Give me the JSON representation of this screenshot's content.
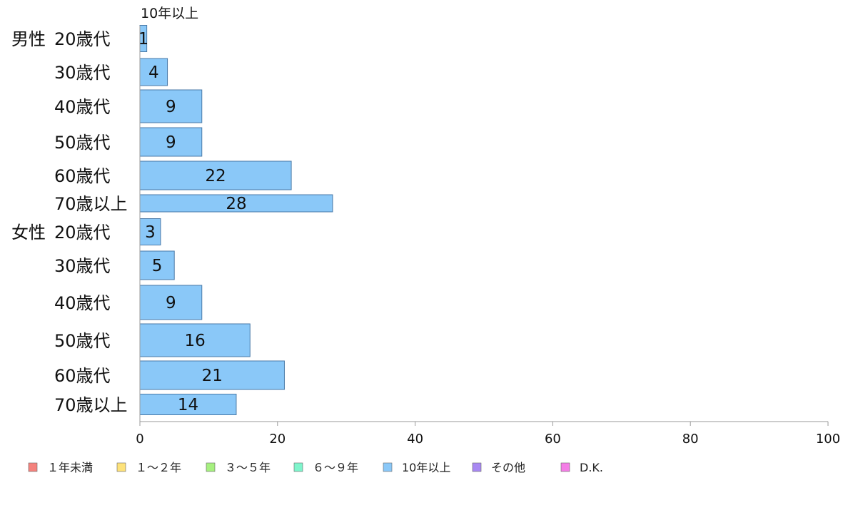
{
  "chart_data": {
    "type": "bar",
    "orientation": "horizontal",
    "series_header": "10年以上",
    "groups": [
      {
        "label": "男性",
        "rows": [
          {
            "category": "20歳代",
            "value": 1,
            "label": "1"
          },
          {
            "category": "30歳代",
            "value": 4,
            "label": "4"
          },
          {
            "category": "40歳代",
            "value": 9,
            "label": "9"
          },
          {
            "category": "50歳代",
            "value": 9,
            "label": "9"
          },
          {
            "category": "60歳代",
            "value": 22,
            "label": "22"
          },
          {
            "category": "70歳以上",
            "value": 28,
            "label": "28"
          }
        ]
      },
      {
        "label": "女性",
        "rows": [
          {
            "category": "20歳代",
            "value": 3,
            "label": "3"
          },
          {
            "category": "30歳代",
            "value": 5,
            "label": "5"
          },
          {
            "category": "40歳代",
            "value": 9,
            "label": "9"
          },
          {
            "category": "50歳代",
            "value": 16,
            "label": "16"
          },
          {
            "category": "60歳代",
            "value": 21,
            "label": "21"
          },
          {
            "category": "70歳以上",
            "value": 14,
            "label": "14"
          }
        ]
      }
    ],
    "xlim": [
      0,
      100
    ],
    "xticks": [
      "0",
      "20",
      "40",
      "60",
      "80",
      "100"
    ],
    "legend_position": "bottom",
    "legend": [
      {
        "name": "１年未満",
        "color": "#f4827d"
      },
      {
        "name": "１～２年",
        "color": "#fde27a"
      },
      {
        "name": "３～５年",
        "color": "#a6f07f"
      },
      {
        "name": "６～９年",
        "color": "#7ff5cc"
      },
      {
        "name": "10年以上",
        "color": "#8ac8f8"
      },
      {
        "name": "その他",
        "color": "#a888f2"
      },
      {
        "name": "D.K.",
        "color": "#f47ee6"
      }
    ],
    "bar_color": "#8ac8f8",
    "bar_border_color": "#4a7aa8",
    "axis_color": "#9a9a9a"
  }
}
